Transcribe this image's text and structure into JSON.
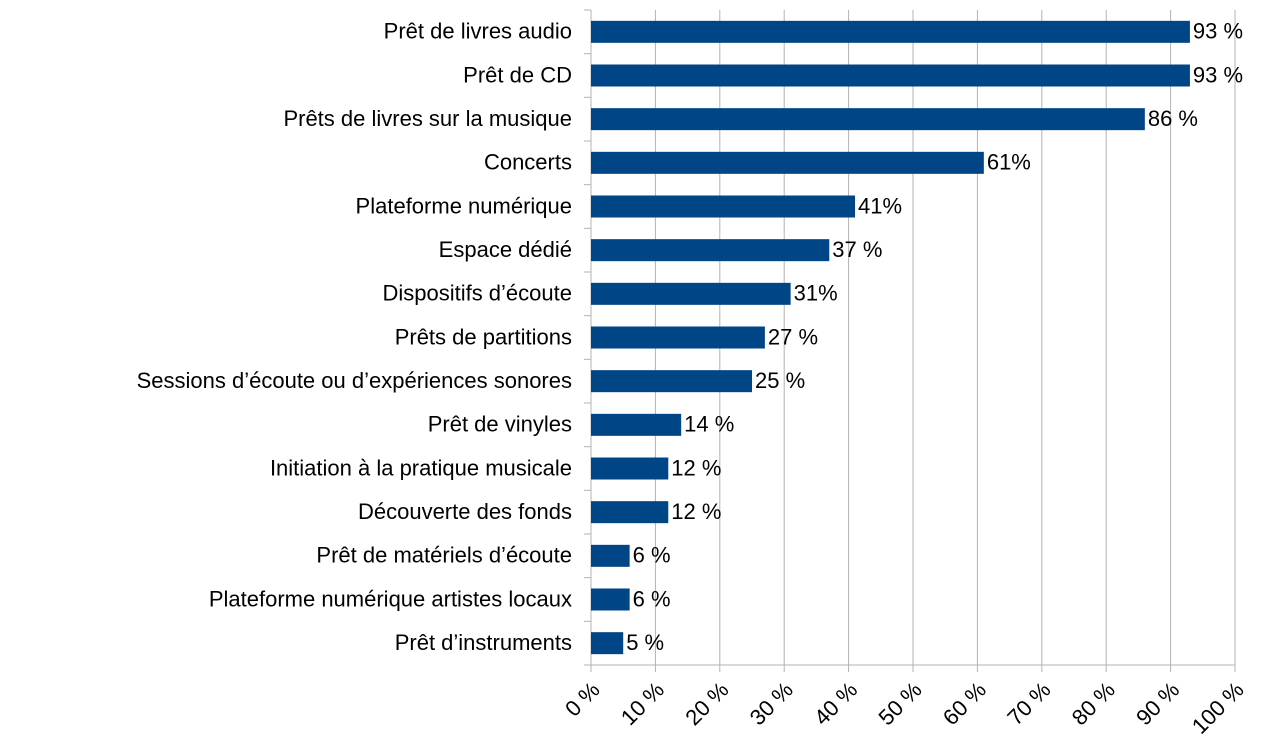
{
  "chart_data": {
    "type": "bar",
    "orientation": "horizontal",
    "categories": [
      "Prêt de livres audio",
      "Prêt de CD",
      "Prêts de livres sur la musique",
      "Concerts",
      "Plateforme numérique",
      "Espace dédié",
      "Dispositifs d’écoute",
      "Prêts de partitions",
      "Sessions d’écoute ou d’expériences sonores",
      "Prêt de vinyles",
      "Initiation à la pratique musicale",
      "Découverte des fonds",
      "Prêt de matériels d’écoute",
      "Plateforme numérique artistes locaux",
      "Prêt d’instruments"
    ],
    "values": [
      93,
      93,
      86,
      61,
      41,
      37,
      31,
      27,
      25,
      14,
      12,
      12,
      6,
      6,
      5
    ],
    "value_labels": [
      "93 %",
      "93 %",
      "86 %",
      "61%",
      "41%",
      "37 %",
      "31%",
      "27 %",
      "25 %",
      "14 %",
      "12 %",
      "12 %",
      "6 %",
      "6 %",
      "5 %"
    ],
    "color": "#004586",
    "xlim": [
      0,
      100
    ],
    "xticks": [
      {
        "value": 0,
        "label": "0 %"
      },
      {
        "value": 10,
        "label": "10 %"
      },
      {
        "value": 20,
        "label": "20 %"
      },
      {
        "value": 30,
        "label": "30 %"
      },
      {
        "value": 40,
        "label": "40 %"
      },
      {
        "value": 50,
        "label": "50 %"
      },
      {
        "value": 60,
        "label": "60 %"
      },
      {
        "value": 70,
        "label": "70 %"
      },
      {
        "value": 80,
        "label": "80 %"
      },
      {
        "value": 90,
        "label": "90 %"
      },
      {
        "value": 100,
        "label": "100 %"
      }
    ],
    "grid": true
  }
}
